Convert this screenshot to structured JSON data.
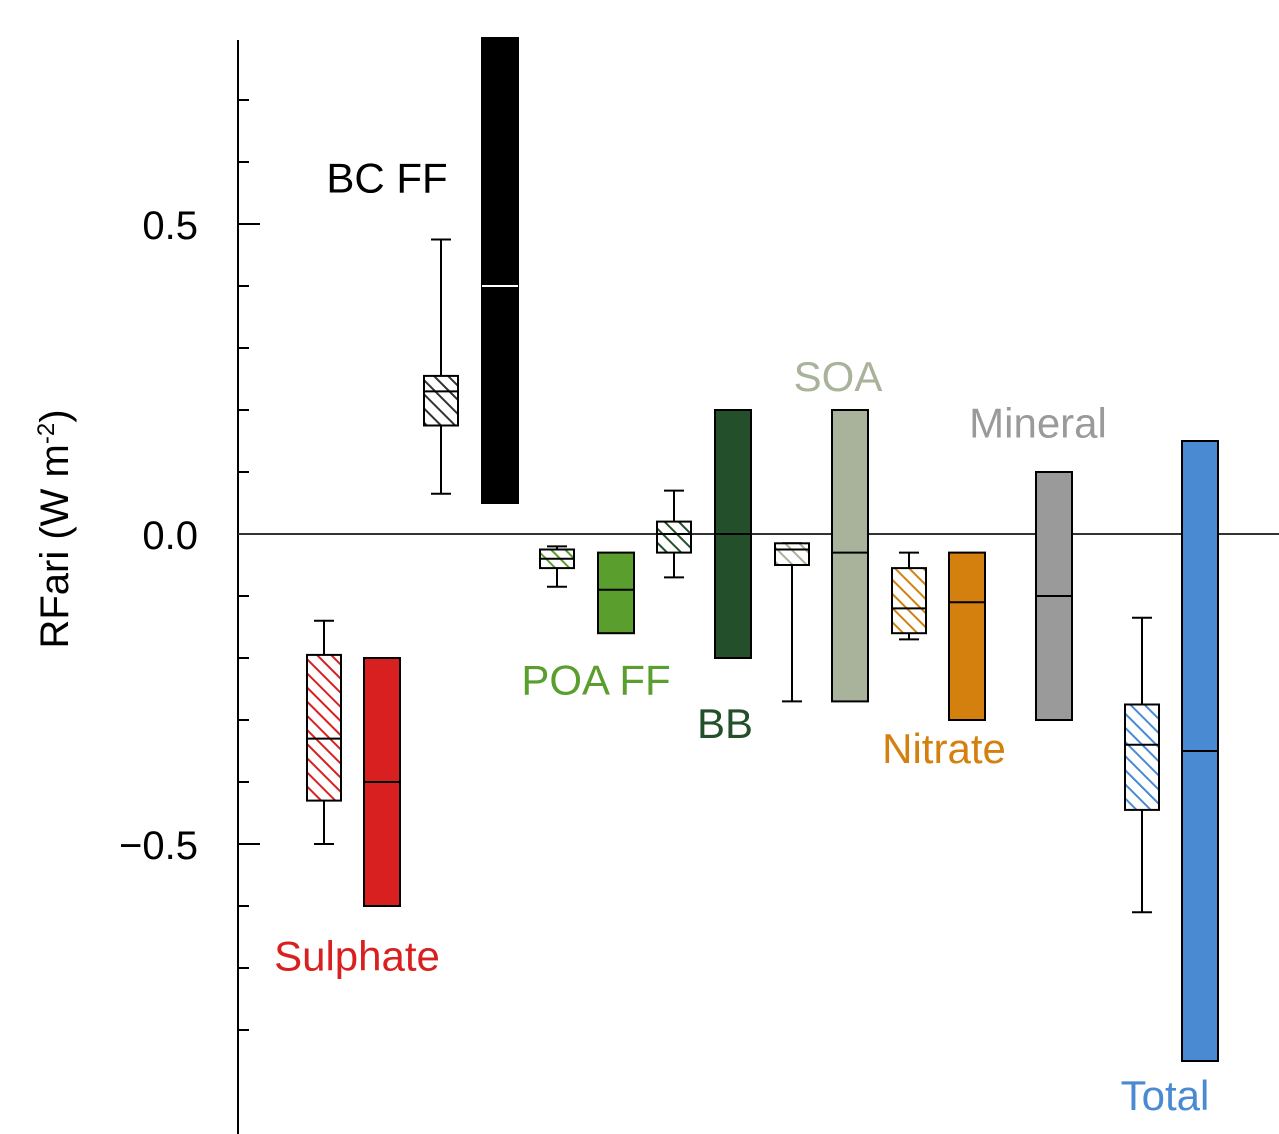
{
  "chart_data": {
    "type": "box",
    "ylabel": "RFari (W m",
    "ylabel_sup": "-2",
    "ylabel_close": ")",
    "ylim": [
      -0.92,
      0.8
    ],
    "ticks": [
      {
        "value": 0.5,
        "label": "0.5"
      },
      {
        "value": 0.0,
        "label": "0.0"
      },
      {
        "value": -0.5,
        "label": "−0.5"
      }
    ],
    "minor_ticks": [
      0.7,
      0.6,
      0.4,
      0.3,
      0.2,
      0.1,
      -0.1,
      -0.2,
      -0.3,
      -0.4,
      -0.6,
      -0.7,
      -0.8
    ],
    "zero_line": true,
    "groups": [
      {
        "name": "Sulphate",
        "color": "#d92020",
        "label_value": -0.68,
        "model_range": {
          "whisker_low": -0.5,
          "q1": -0.43,
          "median": -0.33,
          "q3": -0.195,
          "whisker_high": -0.14
        },
        "assessed": {
          "low": -0.6,
          "median": -0.4,
          "high": -0.2,
          "median_color": "#000000"
        }
      },
      {
        "name": "BC FF",
        "color": "#000000",
        "label_value": 0.575,
        "model_range": {
          "whisker_low": 0.065,
          "q1": 0.175,
          "median": 0.23,
          "q3": 0.255,
          "whisker_high": 0.475
        },
        "assessed": {
          "low": 0.05,
          "median": 0.4,
          "high": 0.8,
          "median_color": "#ffffff"
        }
      },
      {
        "name": "POA FF",
        "color": "#5a9e2e",
        "label_value": -0.235,
        "model_range": {
          "whisker_low": -0.085,
          "q1": -0.055,
          "median": -0.04,
          "q3": -0.025,
          "whisker_high": -0.02
        },
        "assessed": {
          "low": -0.16,
          "median": -0.09,
          "high": -0.03,
          "median_color": "#000000"
        }
      },
      {
        "name": "BB",
        "color": "#23502a",
        "label_value": -0.305,
        "model_range": {
          "whisker_low": -0.07,
          "q1": -0.03,
          "median": 0.0,
          "q3": 0.02,
          "whisker_high": 0.07
        },
        "assessed": {
          "low": -0.2,
          "median": 0.0,
          "high": 0.2,
          "median_color": "#000000"
        }
      },
      {
        "name": "SOA",
        "color": "#a9b29a",
        "label_value": 0.255,
        "model_range": {
          "whisker_low": -0.27,
          "q1": -0.05,
          "median": -0.025,
          "q3": -0.015,
          "whisker_high": -0.015
        },
        "assessed": {
          "low": -0.27,
          "median": -0.03,
          "high": 0.2,
          "median_color": "#000000"
        }
      },
      {
        "name": "Nitrate",
        "color": "#d4800f",
        "label_value": -0.345,
        "model_range": {
          "whisker_low": -0.17,
          "q1": -0.16,
          "median": -0.12,
          "q3": -0.055,
          "whisker_high": -0.03
        },
        "assessed": {
          "low": -0.3,
          "median": -0.11,
          "high": -0.03,
          "median_color": "#000000"
        }
      },
      {
        "name": "Mineral",
        "color": "#9a9a9a",
        "label_value": 0.18,
        "model_range": null,
        "assessed": {
          "low": -0.3,
          "median": -0.1,
          "high": 0.1,
          "median_color": "#000000"
        }
      },
      {
        "name": "Total",
        "color": "#4a8ad2",
        "label_value": -0.905,
        "model_range": {
          "whisker_low": -0.61,
          "q1": -0.445,
          "median": -0.34,
          "q3": -0.275,
          "whisker_high": -0.135
        },
        "assessed": {
          "low": -0.85,
          "median": -0.35,
          "high": 0.15,
          "median_color": "#000000"
        }
      }
    ]
  }
}
